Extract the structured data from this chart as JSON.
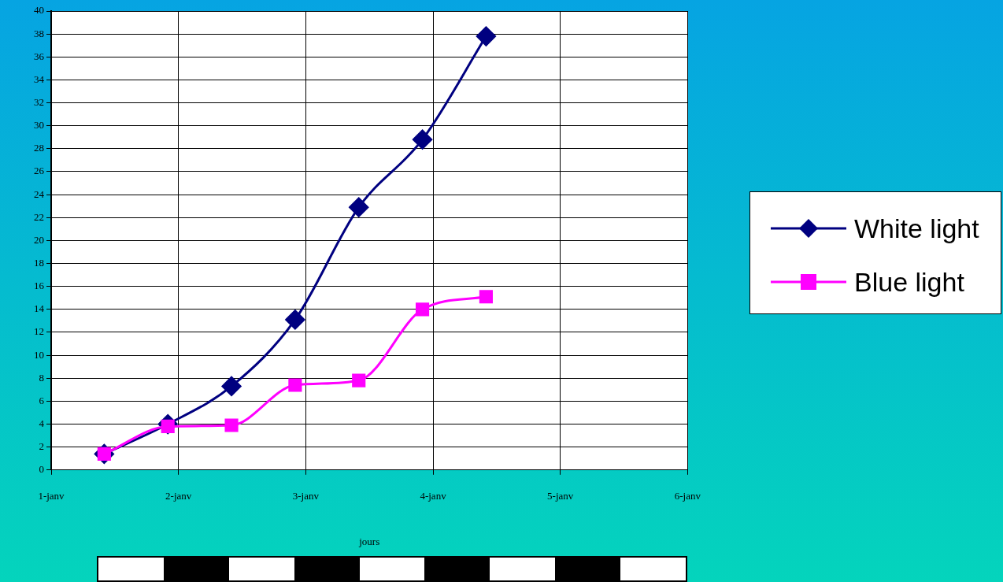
{
  "chart_data": {
    "type": "line",
    "xlabel": "jours",
    "xlim": [
      "--01-01",
      "--01-06"
    ],
    "xticks": [
      {
        "value": "--01-01",
        "label": "1-janv"
      },
      {
        "value": "--01-02",
        "label": "2-janv"
      },
      {
        "value": "--01-03",
        "label": "3-janv"
      },
      {
        "value": "--01-04",
        "label": "4-janv"
      },
      {
        "value": "--01-05",
        "label": "5-janv"
      },
      {
        "value": "--01-06",
        "label": "6-janv"
      }
    ],
    "ylim": [
      0,
      40
    ],
    "yticks": [
      0,
      2,
      4,
      6,
      8,
      10,
      12,
      14,
      16,
      18,
      20,
      22,
      24,
      26,
      28,
      30,
      32,
      34,
      36,
      38,
      40
    ],
    "x": [
      "--01-01T10:00",
      "--01-01T22:00",
      "--01-02T10:00",
      "--01-02T22:00",
      "--01-03T10:00",
      "--01-03T22:00",
      "--01-04T10:00"
    ],
    "series": [
      {
        "name": "White light",
        "color": "#000080",
        "marker": "diamond",
        "values": [
          1.4,
          4.0,
          7.3,
          13.1,
          22.9,
          28.8,
          37.8
        ]
      },
      {
        "name": "Blue light",
        "color": "#ff00ff",
        "marker": "square",
        "values": [
          1.4,
          3.8,
          3.9,
          7.4,
          7.8,
          14.0,
          15.1
        ]
      }
    ],
    "grid": true,
    "legend": "right",
    "line_style": "solid"
  }
}
